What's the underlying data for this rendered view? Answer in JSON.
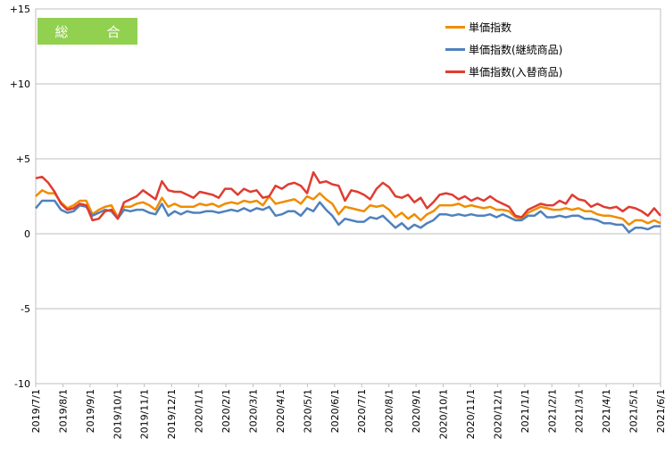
{
  "chart_data": {
    "type": "line",
    "title": "総　合",
    "x_tick_labels": [
      "2019/7/1",
      "2019/8/1",
      "2019/9/1",
      "2019/10/1",
      "2019/11/1",
      "2019/12/1",
      "2020/1/1",
      "2020/2/1",
      "2020/3/1",
      "2020/4/1",
      "2020/5/1",
      "2020/6/1",
      "2020/7/1",
      "2020/8/1",
      "2020/9/1",
      "2020/10/1",
      "2020/11/1",
      "2020/12/1",
      "2021/1/1",
      "2021/2/1",
      "2021/3/1",
      "2021/4/1",
      "2021/5/1",
      "2021/6/1"
    ],
    "y_tick_labels": [
      "+15",
      "+10",
      "+5",
      "0",
      "-5",
      "-10"
    ],
    "y_tick_values": [
      15,
      10,
      5,
      0,
      -5,
      -10
    ],
    "ylim": [
      -10,
      15
    ],
    "grid": "horizontal",
    "legend_position": "top-right",
    "series": [
      {
        "name": "単価指数",
        "color": "#f08c00",
        "values": [
          2.5,
          2.9,
          2.7,
          2.7,
          2.1,
          1.7,
          1.9,
          2.2,
          2.2,
          1.3,
          1.6,
          1.8,
          1.9,
          1.1,
          1.8,
          1.8,
          2.0,
          2.1,
          1.9,
          1.6,
          2.4,
          1.8,
          2.0,
          1.8,
          1.8,
          1.8,
          2.0,
          1.9,
          2.0,
          1.8,
          2.0,
          2.1,
          2.0,
          2.2,
          2.1,
          2.2,
          1.9,
          2.5,
          2.0,
          2.1,
          2.2,
          2.3,
          2.0,
          2.5,
          2.3,
          2.7,
          2.3,
          2.0,
          1.3,
          1.8,
          1.7,
          1.6,
          1.5,
          1.9,
          1.8,
          1.9,
          1.6,
          1.1,
          1.4,
          1.0,
          1.3,
          0.9,
          1.3,
          1.5,
          1.9,
          1.9,
          1.9,
          2.0,
          1.8,
          1.9,
          1.8,
          1.7,
          1.8,
          1.6,
          1.6,
          1.5,
          1.1,
          1.0,
          1.4,
          1.6,
          1.8,
          1.7,
          1.6,
          1.6,
          1.7,
          1.6,
          1.7,
          1.5,
          1.5,
          1.3,
          1.2,
          1.2,
          1.1,
          1.0,
          0.6,
          0.9,
          0.9,
          0.7,
          0.9,
          0.7
        ]
      },
      {
        "name": "単価指数(継続商品)",
        "color": "#4f81bd",
        "values": [
          1.7,
          2.2,
          2.2,
          2.2,
          1.6,
          1.4,
          1.5,
          1.9,
          1.8,
          1.2,
          1.4,
          1.6,
          1.5,
          1.0,
          1.6,
          1.5,
          1.6,
          1.6,
          1.4,
          1.3,
          2.0,
          1.2,
          1.5,
          1.3,
          1.5,
          1.4,
          1.4,
          1.5,
          1.5,
          1.4,
          1.5,
          1.6,
          1.5,
          1.7,
          1.5,
          1.7,
          1.6,
          1.8,
          1.2,
          1.3,
          1.5,
          1.5,
          1.2,
          1.7,
          1.5,
          2.1,
          1.6,
          1.2,
          0.6,
          1.0,
          0.9,
          0.8,
          0.8,
          1.1,
          1.0,
          1.2,
          0.8,
          0.4,
          0.7,
          0.3,
          0.6,
          0.4,
          0.7,
          0.9,
          1.3,
          1.3,
          1.2,
          1.3,
          1.2,
          1.3,
          1.2,
          1.2,
          1.3,
          1.1,
          1.3,
          1.1,
          0.9,
          0.9,
          1.2,
          1.2,
          1.5,
          1.1,
          1.1,
          1.2,
          1.1,
          1.2,
          1.2,
          1.0,
          1.0,
          0.9,
          0.7,
          0.7,
          0.6,
          0.6,
          0.1,
          0.4,
          0.4,
          0.3,
          0.5,
          0.5
        ]
      },
      {
        "name": "単価指数(入替商品)",
        "color": "#e03c31",
        "values": [
          3.7,
          3.8,
          3.4,
          2.8,
          2.0,
          1.6,
          1.7,
          2.0,
          1.9,
          0.9,
          1.0,
          1.5,
          1.6,
          1.0,
          2.1,
          2.3,
          2.5,
          2.9,
          2.6,
          2.3,
          3.5,
          2.9,
          2.8,
          2.8,
          2.6,
          2.4,
          2.8,
          2.7,
          2.6,
          2.4,
          3.0,
          3.0,
          2.6,
          3.0,
          2.8,
          2.9,
          2.4,
          2.5,
          3.2,
          3.0,
          3.3,
          3.4,
          3.2,
          2.7,
          4.1,
          3.4,
          3.5,
          3.3,
          3.2,
          2.2,
          2.9,
          2.8,
          2.6,
          2.3,
          3.0,
          3.4,
          3.1,
          2.5,
          2.4,
          2.6,
          2.1,
          2.4,
          1.7,
          2.1,
          2.6,
          2.7,
          2.6,
          2.3,
          2.5,
          2.2,
          2.4,
          2.2,
          2.5,
          2.2,
          2.0,
          1.8,
          1.2,
          1.1,
          1.6,
          1.8,
          2.0,
          1.9,
          1.9,
          2.2,
          2.0,
          2.6,
          2.3,
          2.2,
          1.8,
          2.0,
          1.8,
          1.7,
          1.8,
          1.5,
          1.8,
          1.7,
          1.5,
          1.2,
          1.7,
          1.2
        ]
      }
    ]
  }
}
